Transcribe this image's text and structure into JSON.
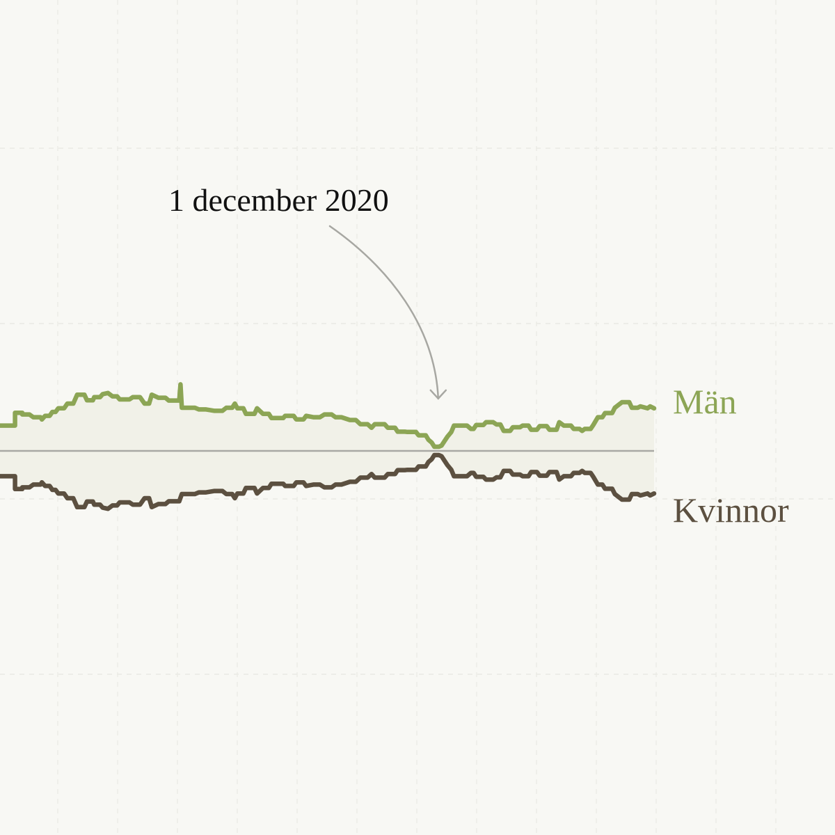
{
  "chart_data": {
    "type": "line",
    "title": "",
    "xlabel": "",
    "ylabel": "",
    "baseline": 0,
    "ylim": [
      -50,
      50
    ],
    "xlim": [
      0,
      100
    ],
    "grid": true,
    "annotation": {
      "label": "1 december 2020",
      "x": 67,
      "y": 1.8
    },
    "series": [
      {
        "name": "Män",
        "color": "#8ca555",
        "points": [
          [
            0,
            9.1
          ],
          [
            2.3,
            9.1
          ],
          [
            2.3,
            13.7
          ],
          [
            3.4,
            13.7
          ],
          [
            3.4,
            13.1
          ],
          [
            4.5,
            13.1
          ],
          [
            5.1,
            12.1
          ],
          [
            6.2,
            12.1
          ],
          [
            6.4,
            11.3
          ],
          [
            6.9,
            12.6
          ],
          [
            7.6,
            12.6
          ],
          [
            8,
            14
          ],
          [
            8.5,
            14
          ],
          [
            8.9,
            15.3
          ],
          [
            9.8,
            15.3
          ],
          [
            10.3,
            17
          ],
          [
            11.2,
            17
          ],
          [
            11.8,
            20.2
          ],
          [
            12.9,
            20.2
          ],
          [
            13.3,
            18.2
          ],
          [
            14.2,
            18.2
          ],
          [
            14.4,
            19.3
          ],
          [
            15.3,
            19.3
          ],
          [
            15.7,
            20.4
          ],
          [
            16.5,
            20.8
          ],
          [
            17.2,
            19.6
          ],
          [
            17.9,
            19.6
          ],
          [
            18.3,
            18.5
          ],
          [
            19.8,
            18.5
          ],
          [
            20.3,
            19.3
          ],
          [
            21.4,
            19.3
          ],
          [
            22.1,
            17
          ],
          [
            22.8,
            17
          ],
          [
            23.2,
            20.2
          ],
          [
            24.2,
            19.1
          ],
          [
            25.3,
            19.1
          ],
          [
            25.8,
            18.1
          ],
          [
            27.4,
            18.1
          ],
          [
            27.6,
            23.9
          ],
          [
            27.8,
            15.5
          ],
          [
            29.8,
            15.5
          ],
          [
            30.4,
            14.9
          ],
          [
            31.5,
            14.9
          ],
          [
            32.8,
            14.4
          ],
          [
            34,
            14.4
          ],
          [
            34.6,
            15.5
          ],
          [
            35.5,
            15.5
          ],
          [
            35.9,
            17
          ],
          [
            36.3,
            15.3
          ],
          [
            37.2,
            15.3
          ],
          [
            37.6,
            13.3
          ],
          [
            38.9,
            13.3
          ],
          [
            39.3,
            15.3
          ],
          [
            40.2,
            13.3
          ],
          [
            41.1,
            13.3
          ],
          [
            41.5,
            11.8
          ],
          [
            43.3,
            11.8
          ],
          [
            43.6,
            12.6
          ],
          [
            44.9,
            12.6
          ],
          [
            45.3,
            11.3
          ],
          [
            46.4,
            11.3
          ],
          [
            46.8,
            12.6
          ],
          [
            47.9,
            12.1
          ],
          [
            48.9,
            12.1
          ],
          [
            49.6,
            13.1
          ],
          [
            50.7,
            13.1
          ],
          [
            51.3,
            12.1
          ],
          [
            52.2,
            12.1
          ],
          [
            53.5,
            11.1
          ],
          [
            54.4,
            11.1
          ],
          [
            55.1,
            9.6
          ],
          [
            56.2,
            9.6
          ],
          [
            56.8,
            8.3
          ],
          [
            57.3,
            9.6
          ],
          [
            58.8,
            9.6
          ],
          [
            59.3,
            8.3
          ],
          [
            60.4,
            8.3
          ],
          [
            60.8,
            6.9
          ],
          [
            61.9,
            6.9
          ],
          [
            62.3,
            6.8
          ],
          [
            63.6,
            6.8
          ],
          [
            64,
            5.6
          ],
          [
            65.1,
            5.6
          ],
          [
            65.5,
            4
          ],
          [
            66,
            3
          ],
          [
            66.4,
            1.5
          ],
          [
            67.1,
            1.5
          ],
          [
            67.5,
            1.9
          ],
          [
            68.4,
            5.1
          ],
          [
            69,
            6.8
          ],
          [
            69.4,
            9.1
          ],
          [
            70.5,
            9.1
          ],
          [
            71.4,
            9.1
          ],
          [
            72,
            7.9
          ],
          [
            72.4,
            7.9
          ],
          [
            72.8,
            9.3
          ],
          [
            73.9,
            9.3
          ],
          [
            74.3,
            10.3
          ],
          [
            75.4,
            10.3
          ],
          [
            75.9,
            9.5
          ],
          [
            76.5,
            9.5
          ],
          [
            77,
            7.2
          ],
          [
            78,
            7.2
          ],
          [
            78.4,
            8.5
          ],
          [
            79.5,
            8.5
          ],
          [
            79.9,
            9.1
          ],
          [
            80.8,
            9.1
          ],
          [
            81.2,
            7.6
          ],
          [
            82.1,
            7.6
          ],
          [
            82.5,
            8.9
          ],
          [
            83.6,
            8.9
          ],
          [
            84,
            7.6
          ],
          [
            85.1,
            7.6
          ],
          [
            85.5,
            10.3
          ],
          [
            86.2,
            9.1
          ],
          [
            87.3,
            9.1
          ],
          [
            87.7,
            7.9
          ],
          [
            88.6,
            7.9
          ],
          [
            89,
            7.2
          ],
          [
            89.4,
            7.9
          ],
          [
            90.3,
            7.9
          ],
          [
            90.7,
            9.3
          ],
          [
            91.4,
            12.1
          ],
          [
            92.1,
            12.1
          ],
          [
            92.5,
            13.6
          ],
          [
            93.6,
            13.6
          ],
          [
            94,
            15.5
          ],
          [
            95.1,
            17.5
          ],
          [
            96.2,
            17.5
          ],
          [
            96.6,
            15.5
          ],
          [
            97.5,
            15.5
          ],
          [
            97.9,
            16
          ],
          [
            99,
            15.3
          ],
          [
            99.4,
            16
          ],
          [
            100,
            15.3
          ]
        ]
      },
      {
        "name": "Kvinnor",
        "color": "#5c5040",
        "points": [
          [
            0,
            -9.1
          ],
          [
            2.3,
            -9.1
          ],
          [
            2.3,
            -13.7
          ],
          [
            3.4,
            -13.7
          ],
          [
            3.4,
            -13.1
          ],
          [
            4.5,
            -13.1
          ],
          [
            5.1,
            -12.1
          ],
          [
            6.2,
            -12.1
          ],
          [
            6.4,
            -11.3
          ],
          [
            6.9,
            -12.6
          ],
          [
            7.6,
            -12.6
          ],
          [
            8,
            -14
          ],
          [
            8.5,
            -14
          ],
          [
            8.9,
            -15.3
          ],
          [
            9.8,
            -15.3
          ],
          [
            10.3,
            -17
          ],
          [
            11.2,
            -17
          ],
          [
            11.8,
            -20.2
          ],
          [
            12.9,
            -20.2
          ],
          [
            13.3,
            -18.2
          ],
          [
            14.2,
            -18.2
          ],
          [
            14.4,
            -19.3
          ],
          [
            15.3,
            -19.3
          ],
          [
            15.7,
            -20.4
          ],
          [
            16.5,
            -20.8
          ],
          [
            17.2,
            -19.6
          ],
          [
            17.9,
            -19.6
          ],
          [
            18.3,
            -18.5
          ],
          [
            19.8,
            -18.5
          ],
          [
            20.3,
            -19.3
          ],
          [
            21.4,
            -19.3
          ],
          [
            22.1,
            -17
          ],
          [
            22.8,
            -17
          ],
          [
            23.2,
            -20.2
          ],
          [
            24.2,
            -19.1
          ],
          [
            25.3,
            -19.1
          ],
          [
            25.8,
            -18.1
          ],
          [
            27.4,
            -18.1
          ],
          [
            27.8,
            -15.5
          ],
          [
            29.8,
            -15.5
          ],
          [
            30.4,
            -14.9
          ],
          [
            31.5,
            -14.9
          ],
          [
            32.8,
            -14.4
          ],
          [
            34,
            -14.4
          ],
          [
            34.6,
            -15.5
          ],
          [
            35.5,
            -15.5
          ],
          [
            35.9,
            -17
          ],
          [
            36.3,
            -15.3
          ],
          [
            37.2,
            -15.3
          ],
          [
            37.6,
            -13.3
          ],
          [
            38.9,
            -13.3
          ],
          [
            39.3,
            -15.3
          ],
          [
            40.2,
            -13.3
          ],
          [
            41.1,
            -13.3
          ],
          [
            41.5,
            -11.8
          ],
          [
            43.3,
            -11.8
          ],
          [
            43.6,
            -12.6
          ],
          [
            44.9,
            -12.6
          ],
          [
            45.3,
            -11.3
          ],
          [
            46.4,
            -11.3
          ],
          [
            46.8,
            -12.6
          ],
          [
            47.9,
            -12.1
          ],
          [
            48.9,
            -12.1
          ],
          [
            49.6,
            -13.1
          ],
          [
            50.7,
            -13.1
          ],
          [
            51.3,
            -12.1
          ],
          [
            52.2,
            -12.1
          ],
          [
            53.5,
            -11.1
          ],
          [
            54.4,
            -11.1
          ],
          [
            55.1,
            -9.6
          ],
          [
            56.2,
            -9.6
          ],
          [
            56.8,
            -8.3
          ],
          [
            57.3,
            -9.6
          ],
          [
            58.8,
            -9.6
          ],
          [
            59.3,
            -8.3
          ],
          [
            60.4,
            -8.3
          ],
          [
            60.8,
            -6.9
          ],
          [
            61.9,
            -6.9
          ],
          [
            62.3,
            -6.8
          ],
          [
            63.6,
            -6.8
          ],
          [
            64,
            -5.6
          ],
          [
            65.1,
            -5.6
          ],
          [
            65.5,
            -4
          ],
          [
            66,
            -3
          ],
          [
            66.4,
            -1.5
          ],
          [
            67.1,
            -1.5
          ],
          [
            67.5,
            -1.9
          ],
          [
            68.4,
            -5.1
          ],
          [
            69,
            -6.8
          ],
          [
            69.4,
            -9.1
          ],
          [
            70.5,
            -9.1
          ],
          [
            71.4,
            -9.1
          ],
          [
            72,
            -7.9
          ],
          [
            72.4,
            -7.9
          ],
          [
            72.8,
            -9.3
          ],
          [
            73.9,
            -9.3
          ],
          [
            74.3,
            -10.3
          ],
          [
            75.4,
            -10.3
          ],
          [
            75.9,
            -9.5
          ],
          [
            76.5,
            -9.5
          ],
          [
            77,
            -7.2
          ],
          [
            78,
            -7.2
          ],
          [
            78.4,
            -8.5
          ],
          [
            79.5,
            -8.5
          ],
          [
            79.9,
            -9.1
          ],
          [
            80.8,
            -9.1
          ],
          [
            81.2,
            -7.6
          ],
          [
            82.1,
            -7.6
          ],
          [
            82.5,
            -8.9
          ],
          [
            83.6,
            -8.9
          ],
          [
            84,
            -7.6
          ],
          [
            85.1,
            -7.6
          ],
          [
            85.5,
            -10.3
          ],
          [
            86.2,
            -9.1
          ],
          [
            87.3,
            -9.1
          ],
          [
            87.7,
            -7.9
          ],
          [
            88.6,
            -7.9
          ],
          [
            89,
            -7.2
          ],
          [
            89.4,
            -7.9
          ],
          [
            90.3,
            -7.9
          ],
          [
            90.7,
            -9.3
          ],
          [
            91.4,
            -12.1
          ],
          [
            92.1,
            -12.1
          ],
          [
            92.5,
            -13.6
          ],
          [
            93.6,
            -13.6
          ],
          [
            94,
            -15.5
          ],
          [
            95.1,
            -17.5
          ],
          [
            96.2,
            -17.5
          ],
          [
            96.6,
            -15.5
          ],
          [
            97.5,
            -15.5
          ],
          [
            97.9,
            -16
          ],
          [
            99,
            -15.3
          ],
          [
            99.4,
            -16
          ],
          [
            100,
            -15.3
          ]
        ]
      }
    ]
  }
}
